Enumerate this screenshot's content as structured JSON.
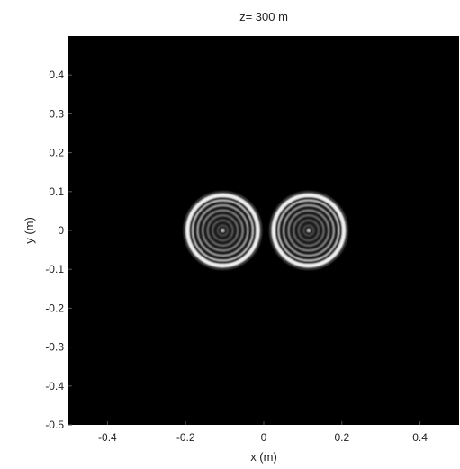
{
  "chart_data": {
    "type": "heatmap",
    "title": "z= 300 m",
    "xlabel": "x (m)",
    "ylabel": "y (m)",
    "xlim": [
      -0.5,
      0.5
    ],
    "ylim": [
      -0.5,
      0.5
    ],
    "x_ticks": [
      -0.4,
      -0.2,
      0,
      0.2,
      0.4
    ],
    "x_tick_labels": [
      "-0.4",
      "-0.2",
      "0",
      "0.2",
      "0.4"
    ],
    "y_ticks": [
      0.4,
      0.3,
      0.2,
      0.1,
      0,
      -0.1,
      -0.2,
      -0.3,
      -0.4,
      -0.5
    ],
    "y_tick_labels": [
      "0.4",
      "0.3",
      "0.2",
      "0.1",
      "0",
      "-0.1",
      "-0.2",
      "-0.3",
      "-0.4",
      "-0.5"
    ],
    "colormap": "gray",
    "background_color": "#000000",
    "beams": [
      {
        "center_x": -0.105,
        "center_y": 0.0,
        "radius": 0.09,
        "ring_count": 7
      },
      {
        "center_x": 0.115,
        "center_y": 0.0,
        "radius": 0.09,
        "ring_count": 7
      }
    ],
    "grid": false
  }
}
